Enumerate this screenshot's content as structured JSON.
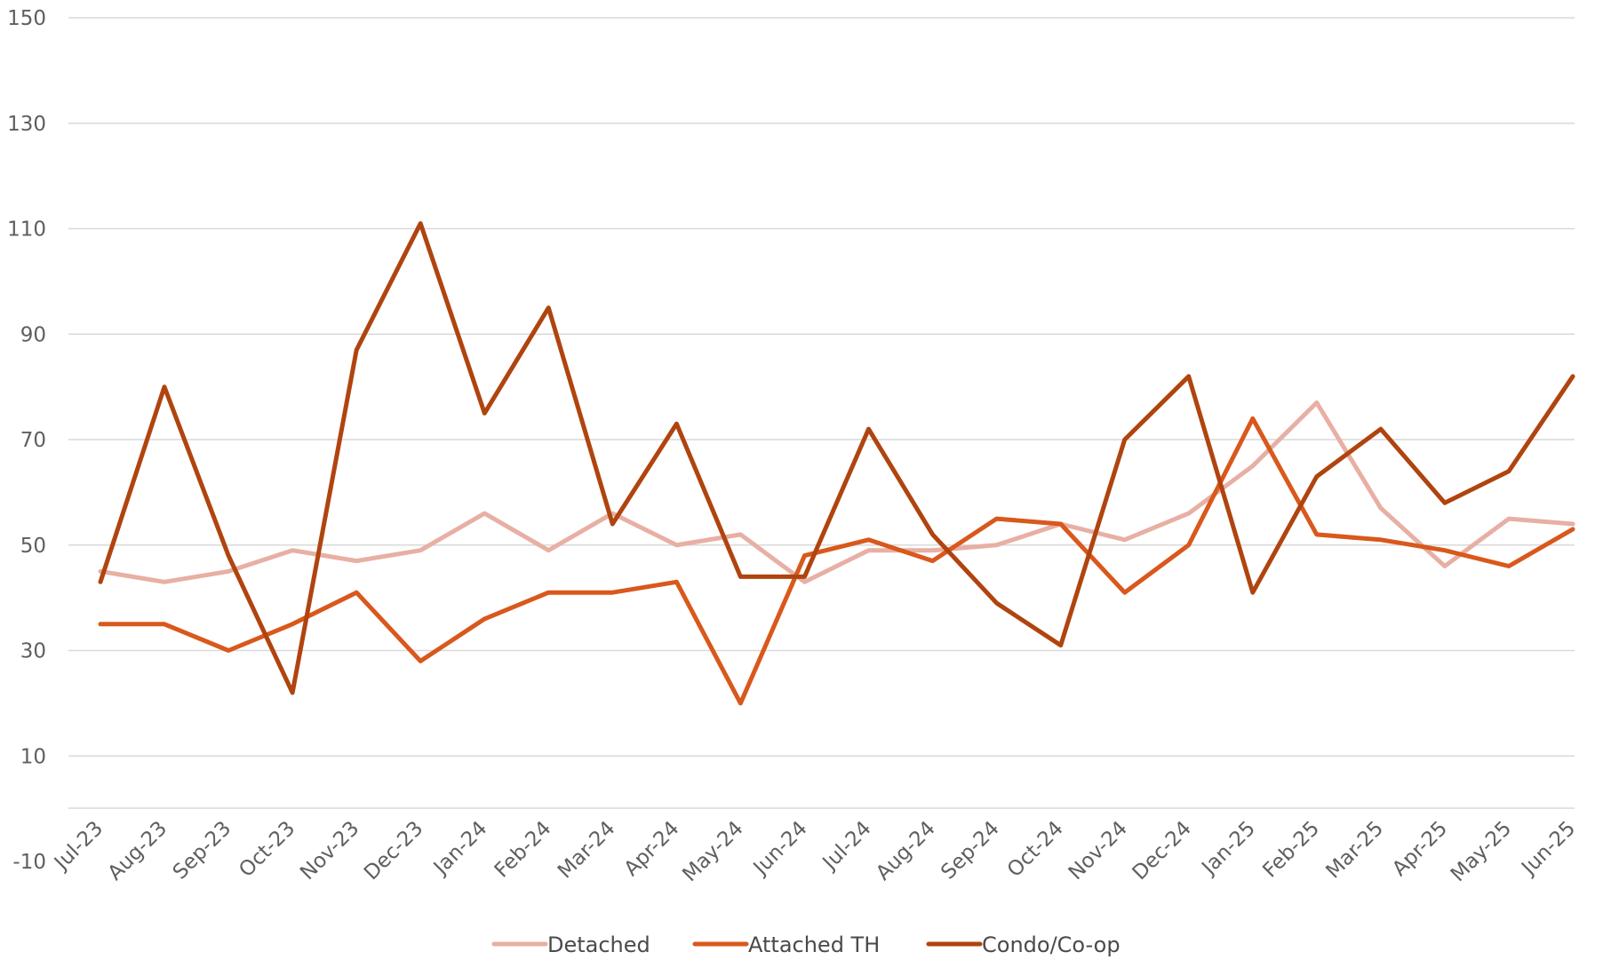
{
  "chart_data": {
    "type": "line",
    "title": "",
    "xlabel": "",
    "ylabel": "",
    "categories": [
      "Jul-23",
      "Aug-23",
      "Sep-23",
      "Oct-23",
      "Nov-23",
      "Dec-23",
      "Jan-24",
      "Feb-24",
      "Mar-24",
      "Apr-24",
      "May-24",
      "Jun-24",
      "Jul-24",
      "Aug-24",
      "Sep-24",
      "Oct-24",
      "Nov-24",
      "Dec-24",
      "Jan-25",
      "Feb-25",
      "Mar-25",
      "Apr-25",
      "May-25",
      "Jun-25"
    ],
    "ylim": [
      -10,
      150
    ],
    "yticks": [
      -10,
      10,
      30,
      50,
      70,
      90,
      110,
      130,
      150
    ],
    "ytick_labels": [
      "-10",
      "10",
      "30",
      "50",
      "70",
      "90",
      "110",
      "130",
      "150"
    ],
    "grid": true,
    "legend_position": "bottom",
    "series": [
      {
        "name": "Detached",
        "color": "#E8AFA4",
        "values": [
          45,
          43,
          45,
          49,
          47,
          49,
          56,
          49,
          56,
          50,
          52,
          43,
          49,
          49,
          50,
          54,
          51,
          56,
          65,
          77,
          57,
          46,
          55,
          54
        ]
      },
      {
        "name": "Attached TH",
        "color": "#D9581C",
        "values": [
          35,
          35,
          30,
          35,
          41,
          28,
          36,
          41,
          41,
          43,
          20,
          48,
          51,
          47,
          55,
          54,
          41,
          50,
          74,
          52,
          51,
          49,
          46,
          53
        ]
      },
      {
        "name": "Condo/Co-op",
        "color": "#B0440F",
        "values": [
          43,
          80,
          48,
          22,
          87,
          111,
          75,
          95,
          54,
          73,
          44,
          44,
          72,
          52,
          39,
          31,
          70,
          82,
          41,
          63,
          72,
          58,
          64,
          82
        ]
      }
    ]
  }
}
